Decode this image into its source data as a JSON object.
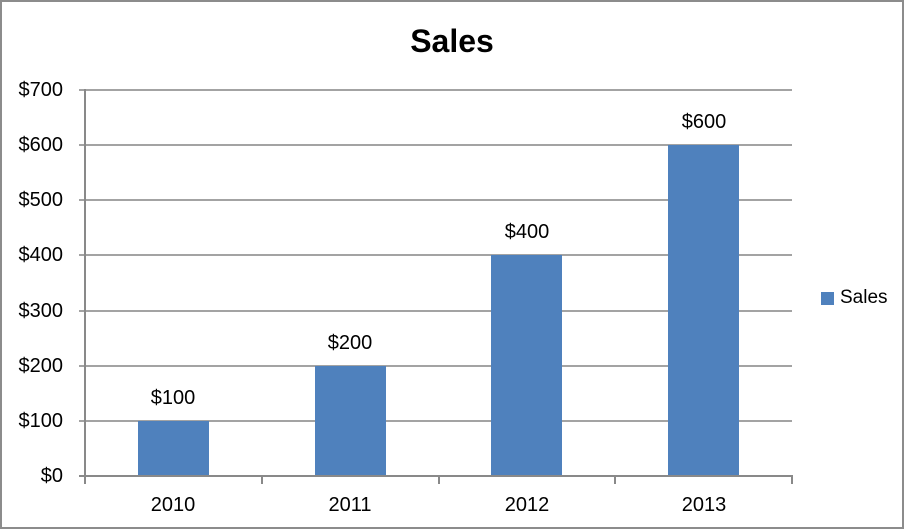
{
  "chart_data": {
    "type": "bar",
    "title": "Sales",
    "categories": [
      "2010",
      "2011",
      "2012",
      "2013"
    ],
    "series": [
      {
        "name": "Sales",
        "values": [
          100,
          200,
          400,
          600
        ]
      }
    ],
    "data_labels": [
      "$100",
      "$200",
      "$400",
      "$600"
    ],
    "y_ticks": [
      "$0",
      "$100",
      "$200",
      "$300",
      "$400",
      "$500",
      "$600",
      "$700"
    ],
    "y_tick_values": [
      0,
      100,
      200,
      300,
      400,
      500,
      600,
      700
    ],
    "ylim": [
      0,
      700
    ],
    "xlabel": "",
    "ylabel": "",
    "grid": true,
    "legend_position": "right",
    "legend": {
      "label": "Sales"
    },
    "colors": {
      "bar": "#4F81BD",
      "gridline": "#A3A3A3",
      "axis": "#898989",
      "frame_border": "#8C8C8C",
      "background": "#FFFFFF",
      "text": "#000000"
    }
  }
}
